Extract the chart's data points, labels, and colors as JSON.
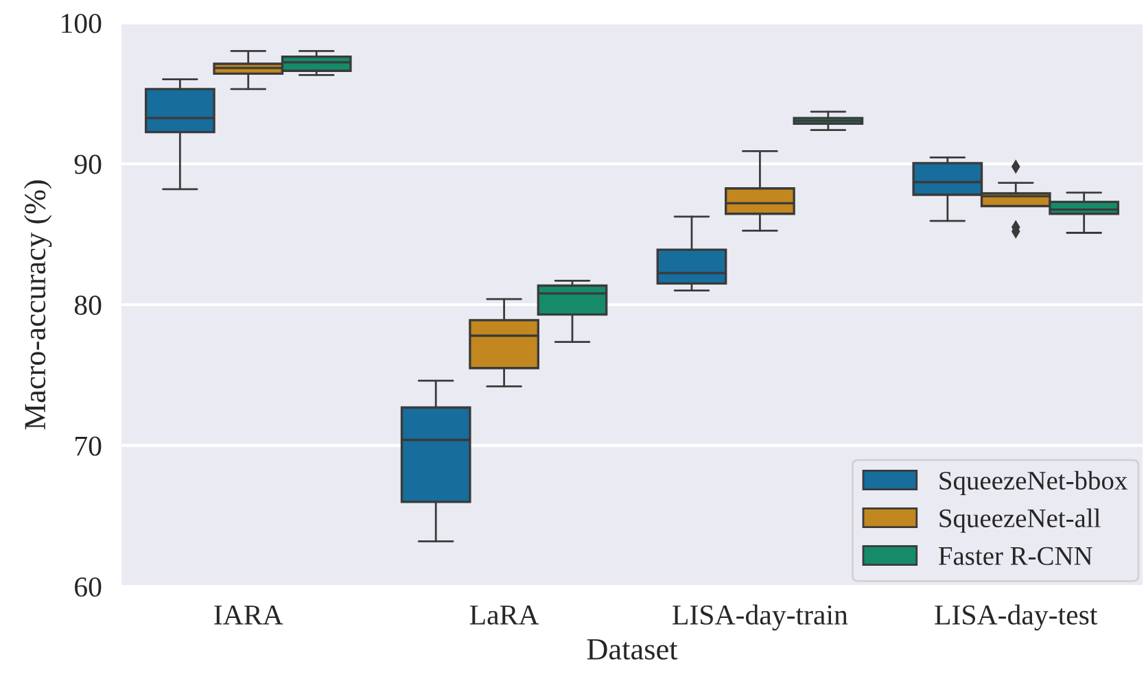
{
  "chart_data": {
    "type": "box",
    "xlabel": "Dataset",
    "ylabel": "Macro-accuracy (%)",
    "categories": [
      "IARA",
      "LaRA",
      "LISA-day-train",
      "LISA-day-test"
    ],
    "ylim": [
      60,
      100
    ],
    "yticks": [
      60,
      70,
      80,
      90,
      100
    ],
    "grid": "y",
    "legend": "bottom right",
    "series": [
      {
        "name": "SqueezeNet-bbox",
        "color": "#176d9c",
        "boxes": [
          {
            "low": 88.2,
            "q1": 92.25,
            "median": 93.25,
            "q3": 95.3,
            "high": 96.0
          },
          {
            "low": 63.2,
            "q1": 66.0,
            "median": 70.4,
            "q3": 72.7,
            "high": 74.6
          },
          {
            "low": 81.0,
            "q1": 81.5,
            "median": 82.25,
            "q3": 83.9,
            "high": 86.25
          },
          {
            "low": 85.95,
            "q1": 87.8,
            "median": 88.7,
            "q3": 90.05,
            "high": 90.45
          }
        ]
      },
      {
        "name": "SqueezeNet-all",
        "color": "#c2871f",
        "boxes": [
          {
            "low": 95.3,
            "q1": 96.4,
            "median": 96.8,
            "q3": 97.1,
            "high": 98.0
          },
          {
            "low": 74.2,
            "q1": 75.5,
            "median": 77.8,
            "q3": 78.9,
            "high": 80.4
          },
          {
            "low": 85.25,
            "q1": 86.45,
            "median": 87.2,
            "q3": 88.25,
            "high": 90.9
          },
          {
            "low": 87.0,
            "q1": 87.0,
            "median": 87.7,
            "q3": 87.9,
            "high": 88.65,
            "outliers": [
              89.8,
              85.5,
              85.2
            ]
          }
        ]
      },
      {
        "name": "Faster R-CNN",
        "color": "#158b6a",
        "boxes": [
          {
            "low": 96.3,
            "q1": 96.6,
            "median": 97.2,
            "q3": 97.6,
            "high": 98.0
          },
          {
            "low": 77.35,
            "q1": 79.3,
            "median": 80.8,
            "q3": 81.35,
            "high": 81.7
          },
          {
            "low": 92.4,
            "q1": 92.85,
            "median": 93.05,
            "q3": 93.25,
            "high": 93.7
          },
          {
            "low": 85.1,
            "q1": 86.45,
            "median": 86.75,
            "q3": 87.3,
            "high": 87.95
          }
        ]
      }
    ]
  }
}
